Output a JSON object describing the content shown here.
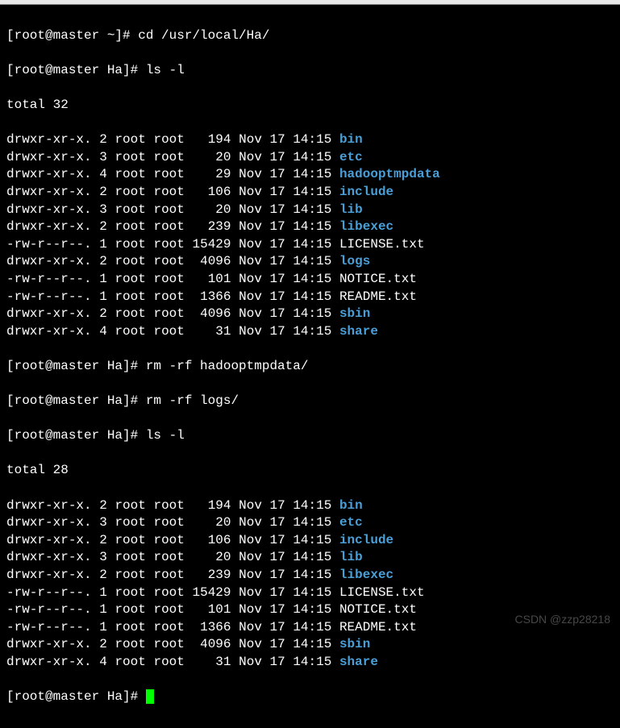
{
  "colors": {
    "background": "#000000",
    "text": "#ffffff",
    "dir": "#4a9fd8",
    "cursor": "#00ff00",
    "watermark": "#666666"
  },
  "typography": {
    "font_family": "Courier New, monospace",
    "font_size": 16,
    "line_height": 1.35
  },
  "prompts": {
    "home": "[root@master ~]# ",
    "ha": "[root@master Ha]# "
  },
  "commands": {
    "cd": "cd /usr/local/Ha/",
    "ls": "ls -l",
    "rm1": "rm -rf hadooptmpdata/",
    "rm2": "rm -rf logs/"
  },
  "totals": {
    "first": "total 32",
    "second": "total 28"
  },
  "listing1": [
    {
      "perm": "drwxr-xr-x.",
      "links": "2",
      "owner": "root",
      "group": "root",
      "size": "  194",
      "date": "Nov 17 14:15",
      "name": "bin",
      "type": "dir"
    },
    {
      "perm": "drwxr-xr-x.",
      "links": "3",
      "owner": "root",
      "group": "root",
      "size": "   20",
      "date": "Nov 17 14:15",
      "name": "etc",
      "type": "dir"
    },
    {
      "perm": "drwxr-xr-x.",
      "links": "4",
      "owner": "root",
      "group": "root",
      "size": "   29",
      "date": "Nov 17 14:15",
      "name": "hadooptmpdata",
      "type": "dir"
    },
    {
      "perm": "drwxr-xr-x.",
      "links": "2",
      "owner": "root",
      "group": "root",
      "size": "  106",
      "date": "Nov 17 14:15",
      "name": "include",
      "type": "dir"
    },
    {
      "perm": "drwxr-xr-x.",
      "links": "3",
      "owner": "root",
      "group": "root",
      "size": "   20",
      "date": "Nov 17 14:15",
      "name": "lib",
      "type": "dir"
    },
    {
      "perm": "drwxr-xr-x.",
      "links": "2",
      "owner": "root",
      "group": "root",
      "size": "  239",
      "date": "Nov 17 14:15",
      "name": "libexec",
      "type": "dir"
    },
    {
      "perm": "-rw-r--r--.",
      "links": "1",
      "owner": "root",
      "group": "root",
      "size": "15429",
      "date": "Nov 17 14:15",
      "name": "LICENSE.txt",
      "type": "file"
    },
    {
      "perm": "drwxr-xr-x.",
      "links": "2",
      "owner": "root",
      "group": "root",
      "size": " 4096",
      "date": "Nov 17 14:15",
      "name": "logs",
      "type": "dir"
    },
    {
      "perm": "-rw-r--r--.",
      "links": "1",
      "owner": "root",
      "group": "root",
      "size": "  101",
      "date": "Nov 17 14:15",
      "name": "NOTICE.txt",
      "type": "file"
    },
    {
      "perm": "-rw-r--r--.",
      "links": "1",
      "owner": "root",
      "group": "root",
      "size": " 1366",
      "date": "Nov 17 14:15",
      "name": "README.txt",
      "type": "file"
    },
    {
      "perm": "drwxr-xr-x.",
      "links": "2",
      "owner": "root",
      "group": "root",
      "size": " 4096",
      "date": "Nov 17 14:15",
      "name": "sbin",
      "type": "dir"
    },
    {
      "perm": "drwxr-xr-x.",
      "links": "4",
      "owner": "root",
      "group": "root",
      "size": "   31",
      "date": "Nov 17 14:15",
      "name": "share",
      "type": "dir"
    }
  ],
  "listing2": [
    {
      "perm": "drwxr-xr-x.",
      "links": "2",
      "owner": "root",
      "group": "root",
      "size": "  194",
      "date": "Nov 17 14:15",
      "name": "bin",
      "type": "dir"
    },
    {
      "perm": "drwxr-xr-x.",
      "links": "3",
      "owner": "root",
      "group": "root",
      "size": "   20",
      "date": "Nov 17 14:15",
      "name": "etc",
      "type": "dir"
    },
    {
      "perm": "drwxr-xr-x.",
      "links": "2",
      "owner": "root",
      "group": "root",
      "size": "  106",
      "date": "Nov 17 14:15",
      "name": "include",
      "type": "dir"
    },
    {
      "perm": "drwxr-xr-x.",
      "links": "3",
      "owner": "root",
      "group": "root",
      "size": "   20",
      "date": "Nov 17 14:15",
      "name": "lib",
      "type": "dir"
    },
    {
      "perm": "drwxr-xr-x.",
      "links": "2",
      "owner": "root",
      "group": "root",
      "size": "  239",
      "date": "Nov 17 14:15",
      "name": "libexec",
      "type": "dir"
    },
    {
      "perm": "-rw-r--r--.",
      "links": "1",
      "owner": "root",
      "group": "root",
      "size": "15429",
      "date": "Nov 17 14:15",
      "name": "LICENSE.txt",
      "type": "file"
    },
    {
      "perm": "-rw-r--r--.",
      "links": "1",
      "owner": "root",
      "group": "root",
      "size": "  101",
      "date": "Nov 17 14:15",
      "name": "NOTICE.txt",
      "type": "file"
    },
    {
      "perm": "-rw-r--r--.",
      "links": "1",
      "owner": "root",
      "group": "root",
      "size": " 1366",
      "date": "Nov 17 14:15",
      "name": "README.txt",
      "type": "file"
    },
    {
      "perm": "drwxr-xr-x.",
      "links": "2",
      "owner": "root",
      "group": "root",
      "size": " 4096",
      "date": "Nov 17 14:15",
      "name": "sbin",
      "type": "dir"
    },
    {
      "perm": "drwxr-xr-x.",
      "links": "4",
      "owner": "root",
      "group": "root",
      "size": "   31",
      "date": "Nov 17 14:15",
      "name": "share",
      "type": "dir"
    }
  ],
  "watermark": "CSDN @zzp28218"
}
